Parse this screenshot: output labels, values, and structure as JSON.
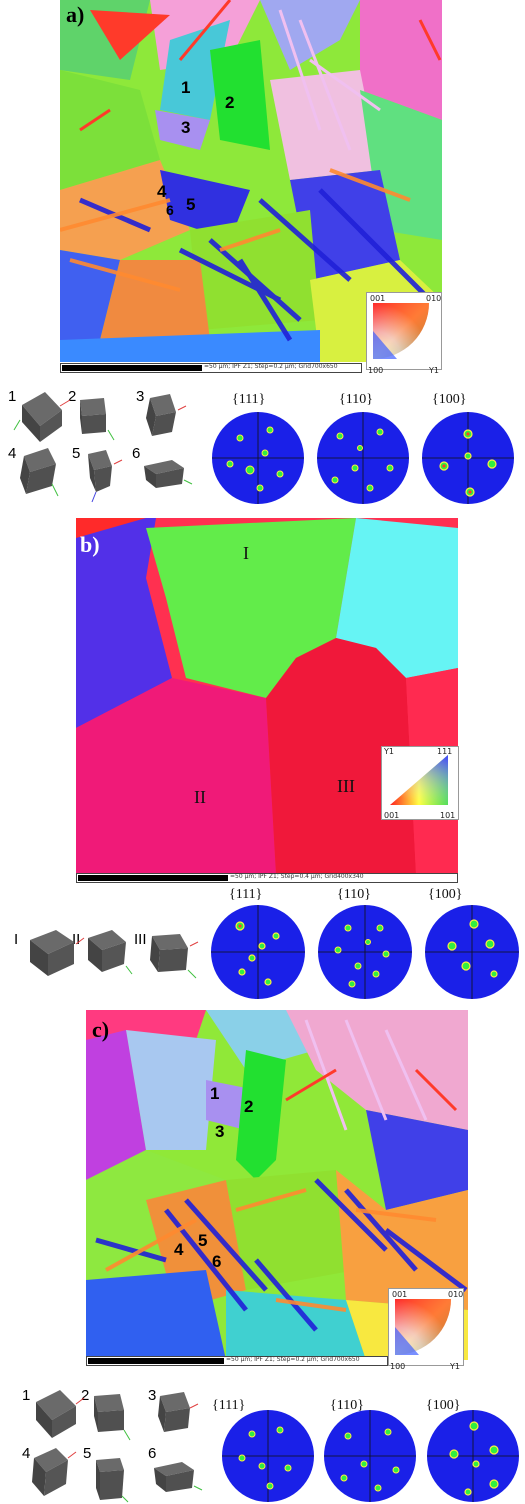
{
  "panel_a": {
    "label": "a)",
    "grain_labels": [
      "1",
      "2",
      "3",
      "4",
      "5",
      "6"
    ],
    "scale_text": "=50 µm; IPF Z1; Step=0.2 µm; Grid700x650",
    "key": {
      "top_left": "001",
      "top_right": "010",
      "bottom_left": "100",
      "bottom_right": "Y1"
    },
    "cube_labels": [
      "1",
      "2",
      "3",
      "4",
      "5",
      "6"
    ],
    "pole_figures": [
      "{111}",
      "{110}",
      "{100}"
    ]
  },
  "panel_b": {
    "label": "b)",
    "grain_labels": [
      "I",
      "II",
      "III"
    ],
    "scale_text": "=50 µm; IPF Z1; Step=0.4 µm; Grid400x340",
    "key": {
      "top_left": "Y1",
      "top_right": "111",
      "bottom_left": "001",
      "bottom_right": "101"
    },
    "cube_labels": [
      "I",
      "II",
      "III"
    ],
    "pole_figures": [
      "{111}",
      "{110}",
      "{100}"
    ]
  },
  "panel_c": {
    "label": "c)",
    "grain_labels": [
      "1",
      "2",
      "3",
      "4",
      "5",
      "6"
    ],
    "scale_text": "=50 µm; IPF Z1; Step=0.2 µm; Grid700x650",
    "key": {
      "top_left": "001",
      "top_right": "010",
      "bottom_left": "100",
      "bottom_right": "Y1"
    },
    "cube_labels": [
      "1",
      "2",
      "3",
      "4",
      "5",
      "6"
    ],
    "pole_figures": [
      "{111}",
      "{110}",
      "{100}"
    ]
  }
}
